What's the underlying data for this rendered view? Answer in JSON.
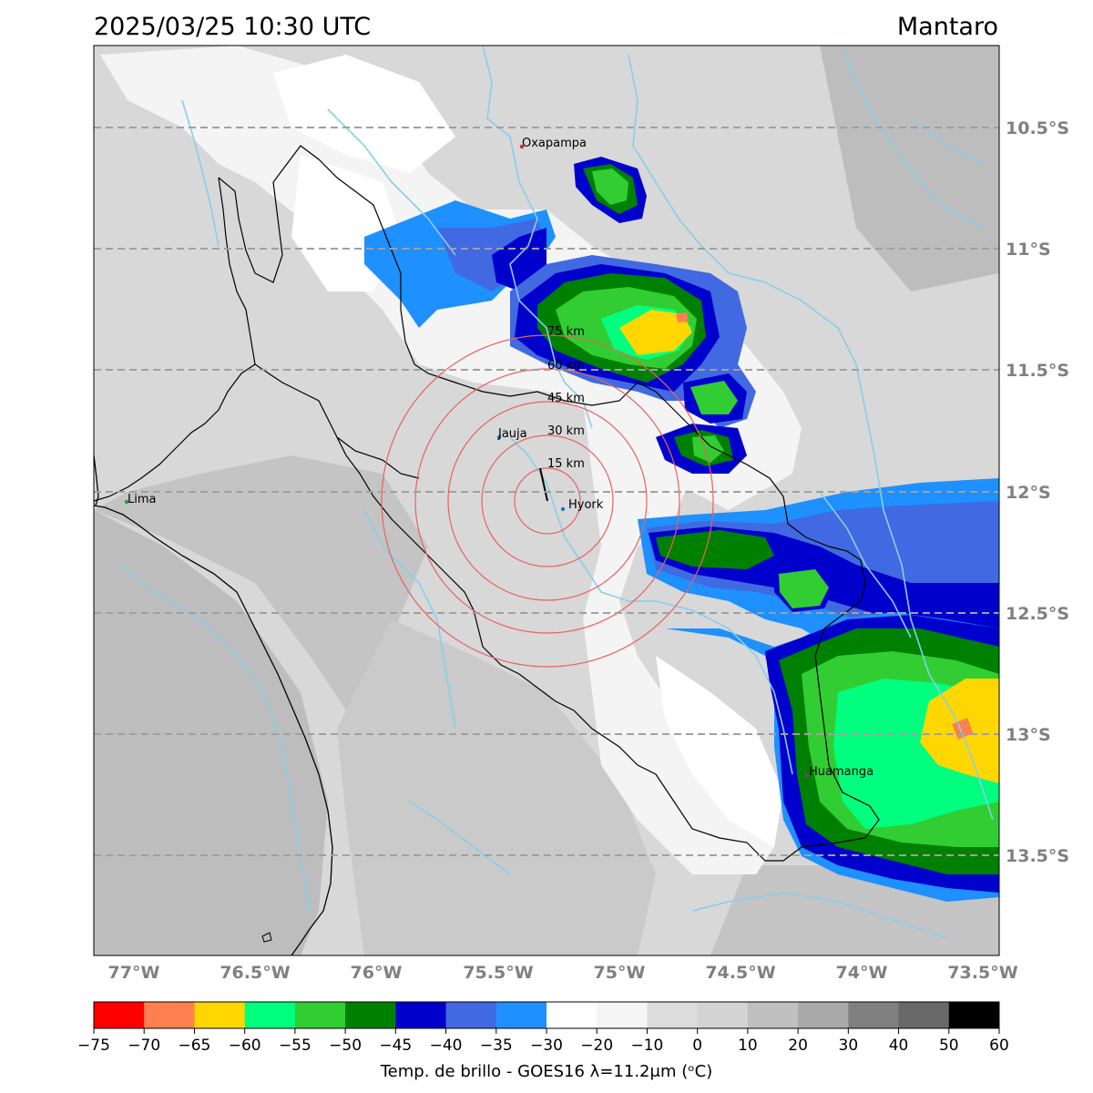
{
  "header": {
    "datetime": "2025/03/25 10:30 UTC",
    "region": "Mantaro"
  },
  "map": {
    "lat_labels": [
      "10.5°S",
      "11°S",
      "11.5°S",
      "12°S",
      "12.5°S",
      "13°S",
      "13.5°S"
    ],
    "lon_labels": [
      "77°W",
      "76.5°W",
      "76°W",
      "75.5°W",
      "75°W",
      "74.5°W",
      "74°W",
      "73.5°W"
    ],
    "cities": [
      {
        "name": "Oxapampa",
        "marker_color": "#d62728"
      },
      {
        "name": "Jauja",
        "marker_color": "#1f77b4"
      },
      {
        "name": "Hyork",
        "marker_color": "#1f77b4"
      },
      {
        "name": "Lima",
        "marker_color": "#2ca02c"
      },
      {
        "name": "Huamanga",
        "marker_color": "#555555"
      }
    ],
    "range_rings": [
      "15 km",
      "30 km",
      "45 km",
      "60 km",
      "75 km"
    ],
    "ring_color": "#e8625f",
    "river_color": "#87ceeb"
  },
  "colorbar": {
    "ticks": [
      "−75",
      "−70",
      "−65",
      "−60",
      "−55",
      "−50",
      "−45",
      "−40",
      "−35",
      "−30",
      "−20",
      "−10",
      "0",
      "10",
      "20",
      "30",
      "40",
      "50",
      "60"
    ],
    "colors": [
      "#ff0000",
      "#ff7f50",
      "#ffd700",
      "#00ff7f",
      "#32cd32",
      "#008000",
      "#0000cd",
      "#4169e1",
      "#1e90ff",
      "#ffffff",
      "#f5f5f5",
      "#dcdcdc",
      "#d3d3d3",
      "#c0c0c0",
      "#a9a9a9",
      "#808080",
      "#696969",
      "#000000"
    ],
    "caption": "Temp. de brillo - GOES16 λ=11.2μm (ᵒC)"
  }
}
